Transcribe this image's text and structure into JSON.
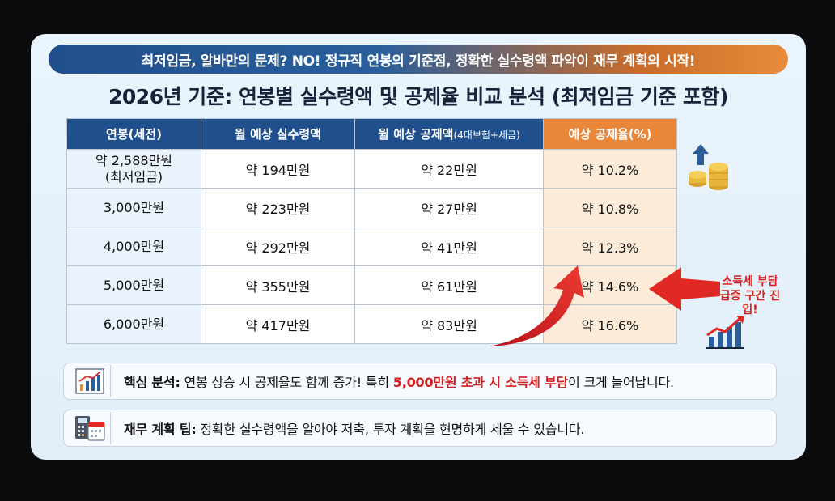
{
  "banner": "최저임금, 알바만의 문제? NO! 정규직 연봉의 기준점, 정확한 실수령액 파악이 재무 계획의 시작!",
  "title": "2026년 기준: 연봉별 실수령액 및 공제율 비교 분석 (최저임금 기준 포함)",
  "table": {
    "headers": {
      "salary": "연봉(세전)",
      "net": "월 예상 실수령액",
      "deduction_main": "월 예상 공제액",
      "deduction_sub": "(4대보험+세금)",
      "rate": "예상 공제율(%)"
    },
    "rows": [
      {
        "salary": "약 2,588만원",
        "salary_note": "(최저임금)",
        "net": "약 194만원",
        "deduction": "약 22만원",
        "rate": "약 10.2%"
      },
      {
        "salary": "3,000만원",
        "salary_note": "",
        "net": "약 223만원",
        "deduction": "약 27만원",
        "rate": "약 10.8%"
      },
      {
        "salary": "4,000만원",
        "salary_note": "",
        "net": "약 292만원",
        "deduction": "약 41만원",
        "rate": "약 12.3%"
      },
      {
        "salary": "5,000만원",
        "salary_note": "",
        "net": "약 355만원",
        "deduction": "약 61만원",
        "rate": "약 14.6%"
      },
      {
        "salary": "6,000만원",
        "salary_note": "",
        "net": "약 417만원",
        "deduction": "약 83만원",
        "rate": "약 16.6%"
      }
    ]
  },
  "callout": {
    "line1": "소득세 부담",
    "line2": "급증 구간 진입!"
  },
  "analysis": {
    "label": "핵심 분석:",
    "text_before": " 연봉 상승 시 공제율도 함께 증가! 특히 ",
    "highlight": "5,000만원 초과 시 소득세 부담",
    "text_after": "이 크게 늘어납니다."
  },
  "tip": {
    "label": "재무 계획 팁:",
    "text": " 정확한 실수령액을 알아야 저축, 투자 계획을 현명하게 세울 수 있습니다."
  },
  "icons": {
    "coins": "coins-up-arrow-icon",
    "growth": "growth-chart-icon",
    "analysis": "bar-chart-icon",
    "tip": "calculator-calendar-icon"
  },
  "colors": {
    "navy": "#1f4f8c",
    "orange": "#e8863a",
    "red": "#d62020",
    "rate_bg": "#fcebd9"
  }
}
